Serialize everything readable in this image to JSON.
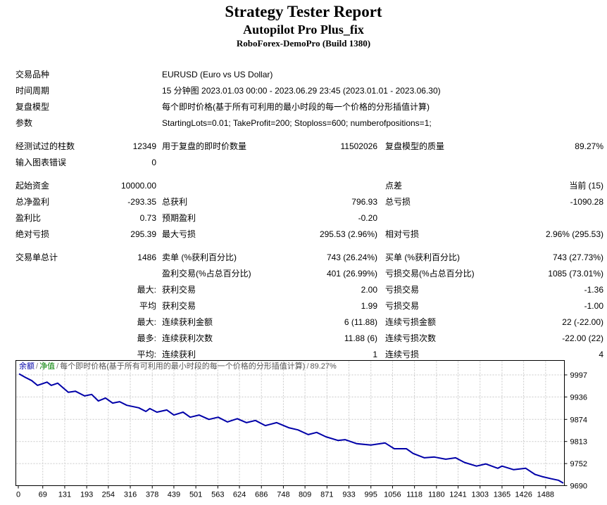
{
  "header": {
    "title": "Strategy Tester Report",
    "ea_name": "Autopilot Pro Plus_fix",
    "server": "RoboForex-DemoPro (Build 1380)"
  },
  "report": {
    "rows": [
      {
        "gap": false,
        "cells": [
          "交易品种",
          "",
          "EURUSD (Euro vs US Dollar)",
          "",
          "",
          ""
        ]
      },
      {
        "gap": false,
        "cells": [
          "时间周期",
          "",
          "15 分钟图 2023.01.03 00:00 - 2023.06.29 23:45 (2023.01.01 - 2023.06.30)",
          "",
          "",
          ""
        ]
      },
      {
        "gap": false,
        "cells": [
          "复盘模型",
          "",
          "每个即时价格(基于所有可利用的最小时段的每一个价格的分形插值计算)",
          "",
          "",
          ""
        ]
      },
      {
        "gap": false,
        "cells": [
          "参数",
          "",
          "StartingLots=0.01; TakeProfit=200; Stoploss=600; numberofpositions=1;",
          "",
          "",
          ""
        ]
      },
      {
        "gap": true,
        "cells": [
          "经测试过的柱数",
          "12349",
          "用于复盘的即时价数量",
          "11502026",
          "复盘模型的质量",
          "89.27%"
        ]
      },
      {
        "gap": false,
        "cells": [
          "输入图表错误",
          "0",
          "",
          "",
          "",
          ""
        ]
      },
      {
        "gap": true,
        "cells": [
          "起始资金",
          "10000.00",
          "",
          "",
          "点差",
          "当前 (15)"
        ]
      },
      {
        "gap": false,
        "cells": [
          "总净盈利",
          "-293.35",
          "总获利",
          "796.93",
          "总亏损",
          "-1090.28"
        ]
      },
      {
        "gap": false,
        "cells": [
          "盈利比",
          "0.73",
          "预期盈利",
          "-0.20",
          "",
          ""
        ]
      },
      {
        "gap": false,
        "cells": [
          "绝对亏损",
          "295.39",
          "最大亏损",
          "295.53 (2.96%)",
          "相对亏损",
          "2.96% (295.53)"
        ]
      },
      {
        "gap": true,
        "cells": [
          "交易单总计",
          "1486",
          "卖单 (%获利百分比)",
          "743 (26.24%)",
          "买单 (%获利百分比)",
          "743 (27.73%)"
        ]
      },
      {
        "gap": false,
        "cells": [
          "",
          "",
          "盈利交易(%占总百分比)",
          "401 (26.99%)",
          "亏损交易(%占总百分比)",
          "1085 (73.01%)"
        ]
      },
      {
        "gap": false,
        "cells": [
          "",
          "最大:",
          "获利交易",
          "2.00",
          "亏损交易",
          "-1.36"
        ]
      },
      {
        "gap": false,
        "cells": [
          "",
          "平均",
          "获利交易",
          "1.99",
          "亏损交易",
          "-1.00"
        ]
      },
      {
        "gap": false,
        "cells": [
          "",
          "最大:",
          "连续获利金额",
          "6 (11.88)",
          "连续亏损金额",
          "22 (-22.00)"
        ]
      },
      {
        "gap": false,
        "cells": [
          "",
          "最多:",
          "连续获利次数",
          "11.88 (6)",
          "连续亏损次数",
          "-22.00 (22)"
        ]
      },
      {
        "gap": false,
        "cells": [
          "",
          "平均:",
          "连续获利",
          "1",
          "连续亏损",
          "4"
        ]
      }
    ]
  },
  "chart_data": {
    "type": "line",
    "title": "",
    "xlabel": "",
    "ylabel": "",
    "legend": {
      "balance_label": "余额",
      "equity_label": "净值",
      "model_label": "每个即时价格(基于所有可利用的最小时段的每一个价格的分形插值计算)",
      "quality_label": "89.27%"
    },
    "legend_position": "top-left-inside",
    "grid": true,
    "x_ticks": [
      0,
      69,
      131,
      193,
      254,
      316,
      378,
      439,
      501,
      563,
      624,
      686,
      748,
      809,
      871,
      933,
      995,
      1056,
      1118,
      1180,
      1241,
      1303,
      1365,
      1426,
      1488
    ],
    "y_ticks": [
      9997,
      9936,
      9874,
      9813,
      9752,
      9690
    ],
    "x_range": [
      0,
      1540
    ],
    "y_range": [
      9690,
      9997
    ],
    "colors": {
      "balance_line": "#0000A8",
      "equity_legend": "#008000",
      "balance_legend": "#0000A8",
      "grid_line": "#C9C9C9",
      "axis": "#000000"
    },
    "series": [
      {
        "name": "余额",
        "points": [
          [
            2,
            10000
          ],
          [
            20,
            9990
          ],
          [
            38,
            9981
          ],
          [
            54,
            9968
          ],
          [
            81,
            9977
          ],
          [
            93,
            9968
          ],
          [
            111,
            9974
          ],
          [
            141,
            9949
          ],
          [
            161,
            9952
          ],
          [
            187,
            9939
          ],
          [
            207,
            9943
          ],
          [
            226,
            9925
          ],
          [
            246,
            9933
          ],
          [
            266,
            9919
          ],
          [
            286,
            9923
          ],
          [
            306,
            9913
          ],
          [
            340,
            9906
          ],
          [
            360,
            9896
          ],
          [
            371,
            9904
          ],
          [
            391,
            9894
          ],
          [
            419,
            9900
          ],
          [
            439,
            9886
          ],
          [
            465,
            9894
          ],
          [
            485,
            9880
          ],
          [
            510,
            9886
          ],
          [
            538,
            9874
          ],
          [
            564,
            9880
          ],
          [
            590,
            9867
          ],
          [
            618,
            9876
          ],
          [
            644,
            9865
          ],
          [
            669,
            9871
          ],
          [
            697,
            9857
          ],
          [
            729,
            9865
          ],
          [
            763,
            9851
          ],
          [
            789,
            9845
          ],
          [
            818,
            9832
          ],
          [
            842,
            9838
          ],
          [
            868,
            9826
          ],
          [
            902,
            9816
          ],
          [
            922,
            9818
          ],
          [
            955,
            9807
          ],
          [
            995,
            9803
          ],
          [
            1035,
            9809
          ],
          [
            1061,
            9793
          ],
          [
            1095,
            9793
          ],
          [
            1114,
            9780
          ],
          [
            1146,
            9768
          ],
          [
            1174,
            9770
          ],
          [
            1206,
            9764
          ],
          [
            1234,
            9768
          ],
          [
            1259,
            9755
          ],
          [
            1293,
            9745
          ],
          [
            1319,
            9751
          ],
          [
            1353,
            9739
          ],
          [
            1365,
            9745
          ],
          [
            1398,
            9735
          ],
          [
            1432,
            9739
          ],
          [
            1458,
            9722
          ],
          [
            1478,
            9716
          ],
          [
            1504,
            9710
          ],
          [
            1524,
            9706
          ],
          [
            1538,
            9698
          ]
        ]
      }
    ]
  }
}
